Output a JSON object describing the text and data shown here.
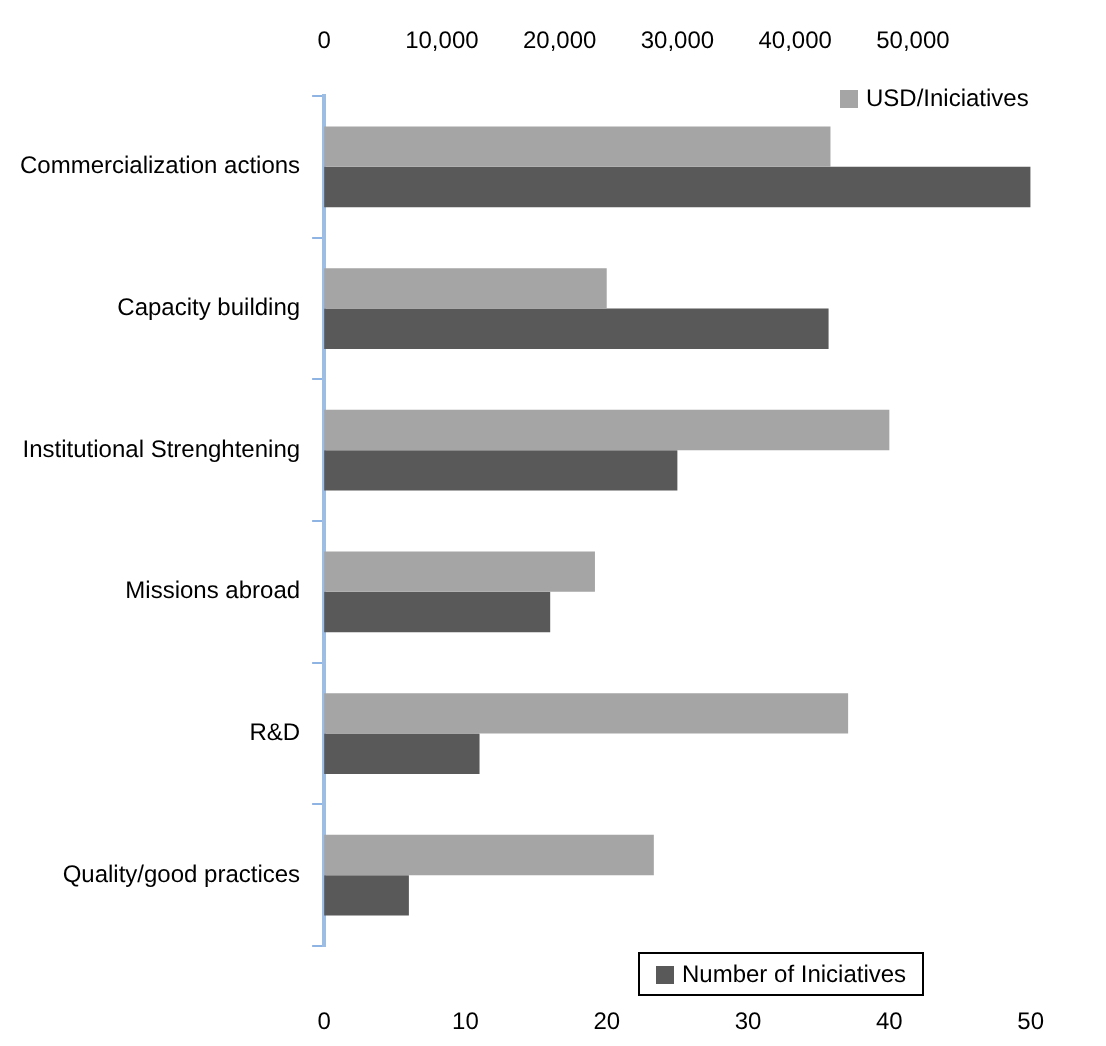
{
  "chart_data": {
    "type": "bar",
    "orientation": "horizontal",
    "categories": [
      "Commercialization actions",
      "Capacity building",
      "Institutional Strenghtening",
      "Missions abroad",
      "R&D",
      "Quality/good practices"
    ],
    "series": [
      {
        "name": "USD/Iniciatives",
        "color": "#a5a5a5",
        "axis": "x2",
        "values": [
          43000,
          24000,
          48000,
          23000,
          44500,
          28000
        ]
      },
      {
        "name": "Number of Iniciatives",
        "color": "#595959",
        "values": [
          50,
          35.7,
          25,
          16,
          11,
          6
        ]
      }
    ],
    "xlim": [
      0,
      50
    ],
    "xticks": [
      0,
      10,
      20,
      30,
      40,
      50
    ],
    "x2lim": [
      0,
      60000
    ],
    "x2ticks": [
      {
        "value": 0,
        "label": "0"
      },
      {
        "value": 10000,
        "label": "10,000"
      },
      {
        "value": 20000,
        "label": "20,000"
      },
      {
        "value": 30000,
        "label": "30,000"
      },
      {
        "value": 40000,
        "label": "40,000"
      },
      {
        "value": 50000,
        "label": "50,000"
      }
    ],
    "grid": false,
    "legend": "right"
  }
}
